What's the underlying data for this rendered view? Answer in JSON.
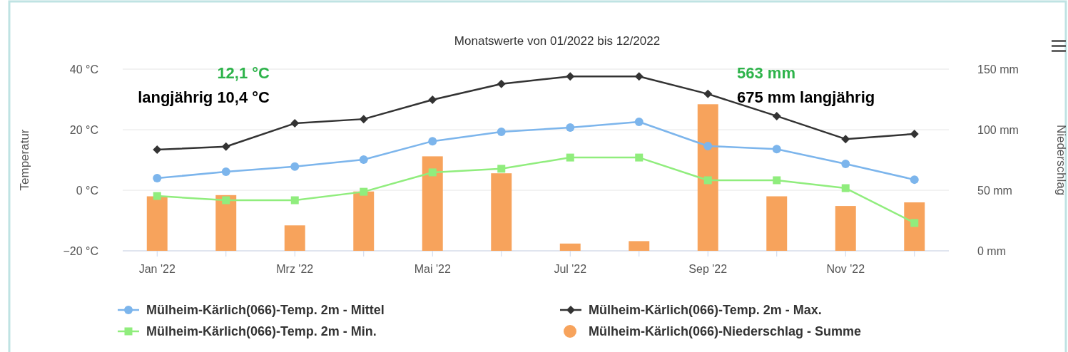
{
  "chart_data": {
    "type": "bar",
    "title": "Monatswerte von 01/2022 bis 12/2022",
    "ylabel": "Temperatur",
    "y2label": "Niederschlag",
    "categories": [
      "Jan '22",
      null,
      "Mrz '22",
      null,
      "Mai '22",
      null,
      "Jul '22",
      null,
      "Sep '22",
      null,
      "Nov '22",
      null
    ],
    "series": [
      {
        "name": "Mülheim-Kärlich(066)-Temp. 2m - Mittel",
        "type": "line",
        "marker": "circle",
        "color": "#7cb5ec",
        "values": [
          4.0,
          6.1,
          7.8,
          10.1,
          16.2,
          19.3,
          20.7,
          22.6,
          14.6,
          13.6,
          8.7,
          3.5
        ]
      },
      {
        "name": "Mülheim-Kärlich(066)-Temp. 2m - Max.",
        "type": "line",
        "marker": "diamond",
        "color": "#333333",
        "values": [
          13.4,
          14.4,
          22.1,
          23.5,
          29.9,
          35.1,
          37.6,
          37.6,
          31.8,
          24.5,
          16.9,
          18.6
        ]
      },
      {
        "name": "Mülheim-Kärlich(066)-Temp. 2m - Min.",
        "type": "line",
        "marker": "square",
        "color": "#90ed7d",
        "values": [
          -1.9,
          -3.3,
          -3.3,
          -0.5,
          5.9,
          7.1,
          10.8,
          10.8,
          3.3,
          3.3,
          0.7,
          -10.8
        ]
      },
      {
        "name": "Mülheim-Kärlich(066)-Niederschlag - Summe",
        "axis": "y2",
        "color": "#f7a35c",
        "values": [
          45,
          46,
          21,
          49,
          78,
          64,
          6,
          8,
          121,
          45,
          37,
          40
        ]
      }
    ],
    "ylim": [
      -20,
      40
    ],
    "yticks": [
      {
        "value": -20,
        "label": "−20 °C"
      },
      {
        "value": 0,
        "label": "0 °C"
      },
      {
        "value": 20,
        "label": "20 °C"
      },
      {
        "value": 40,
        "label": "40 °C"
      }
    ],
    "y2lim": [
      0,
      150
    ],
    "y2ticks": [
      {
        "value": 0,
        "label": "0 mm"
      },
      {
        "value": 50,
        "label": "50 mm"
      },
      {
        "value": 100,
        "label": "100 mm"
      },
      {
        "value": 150,
        "label": "150 mm"
      }
    ],
    "grid": "y",
    "legend": "bottom",
    "annotations": [
      "12,1 °C",
      "langjährig 10,4 °C",
      "563 mm",
      "675 mm langjährig"
    ]
  }
}
